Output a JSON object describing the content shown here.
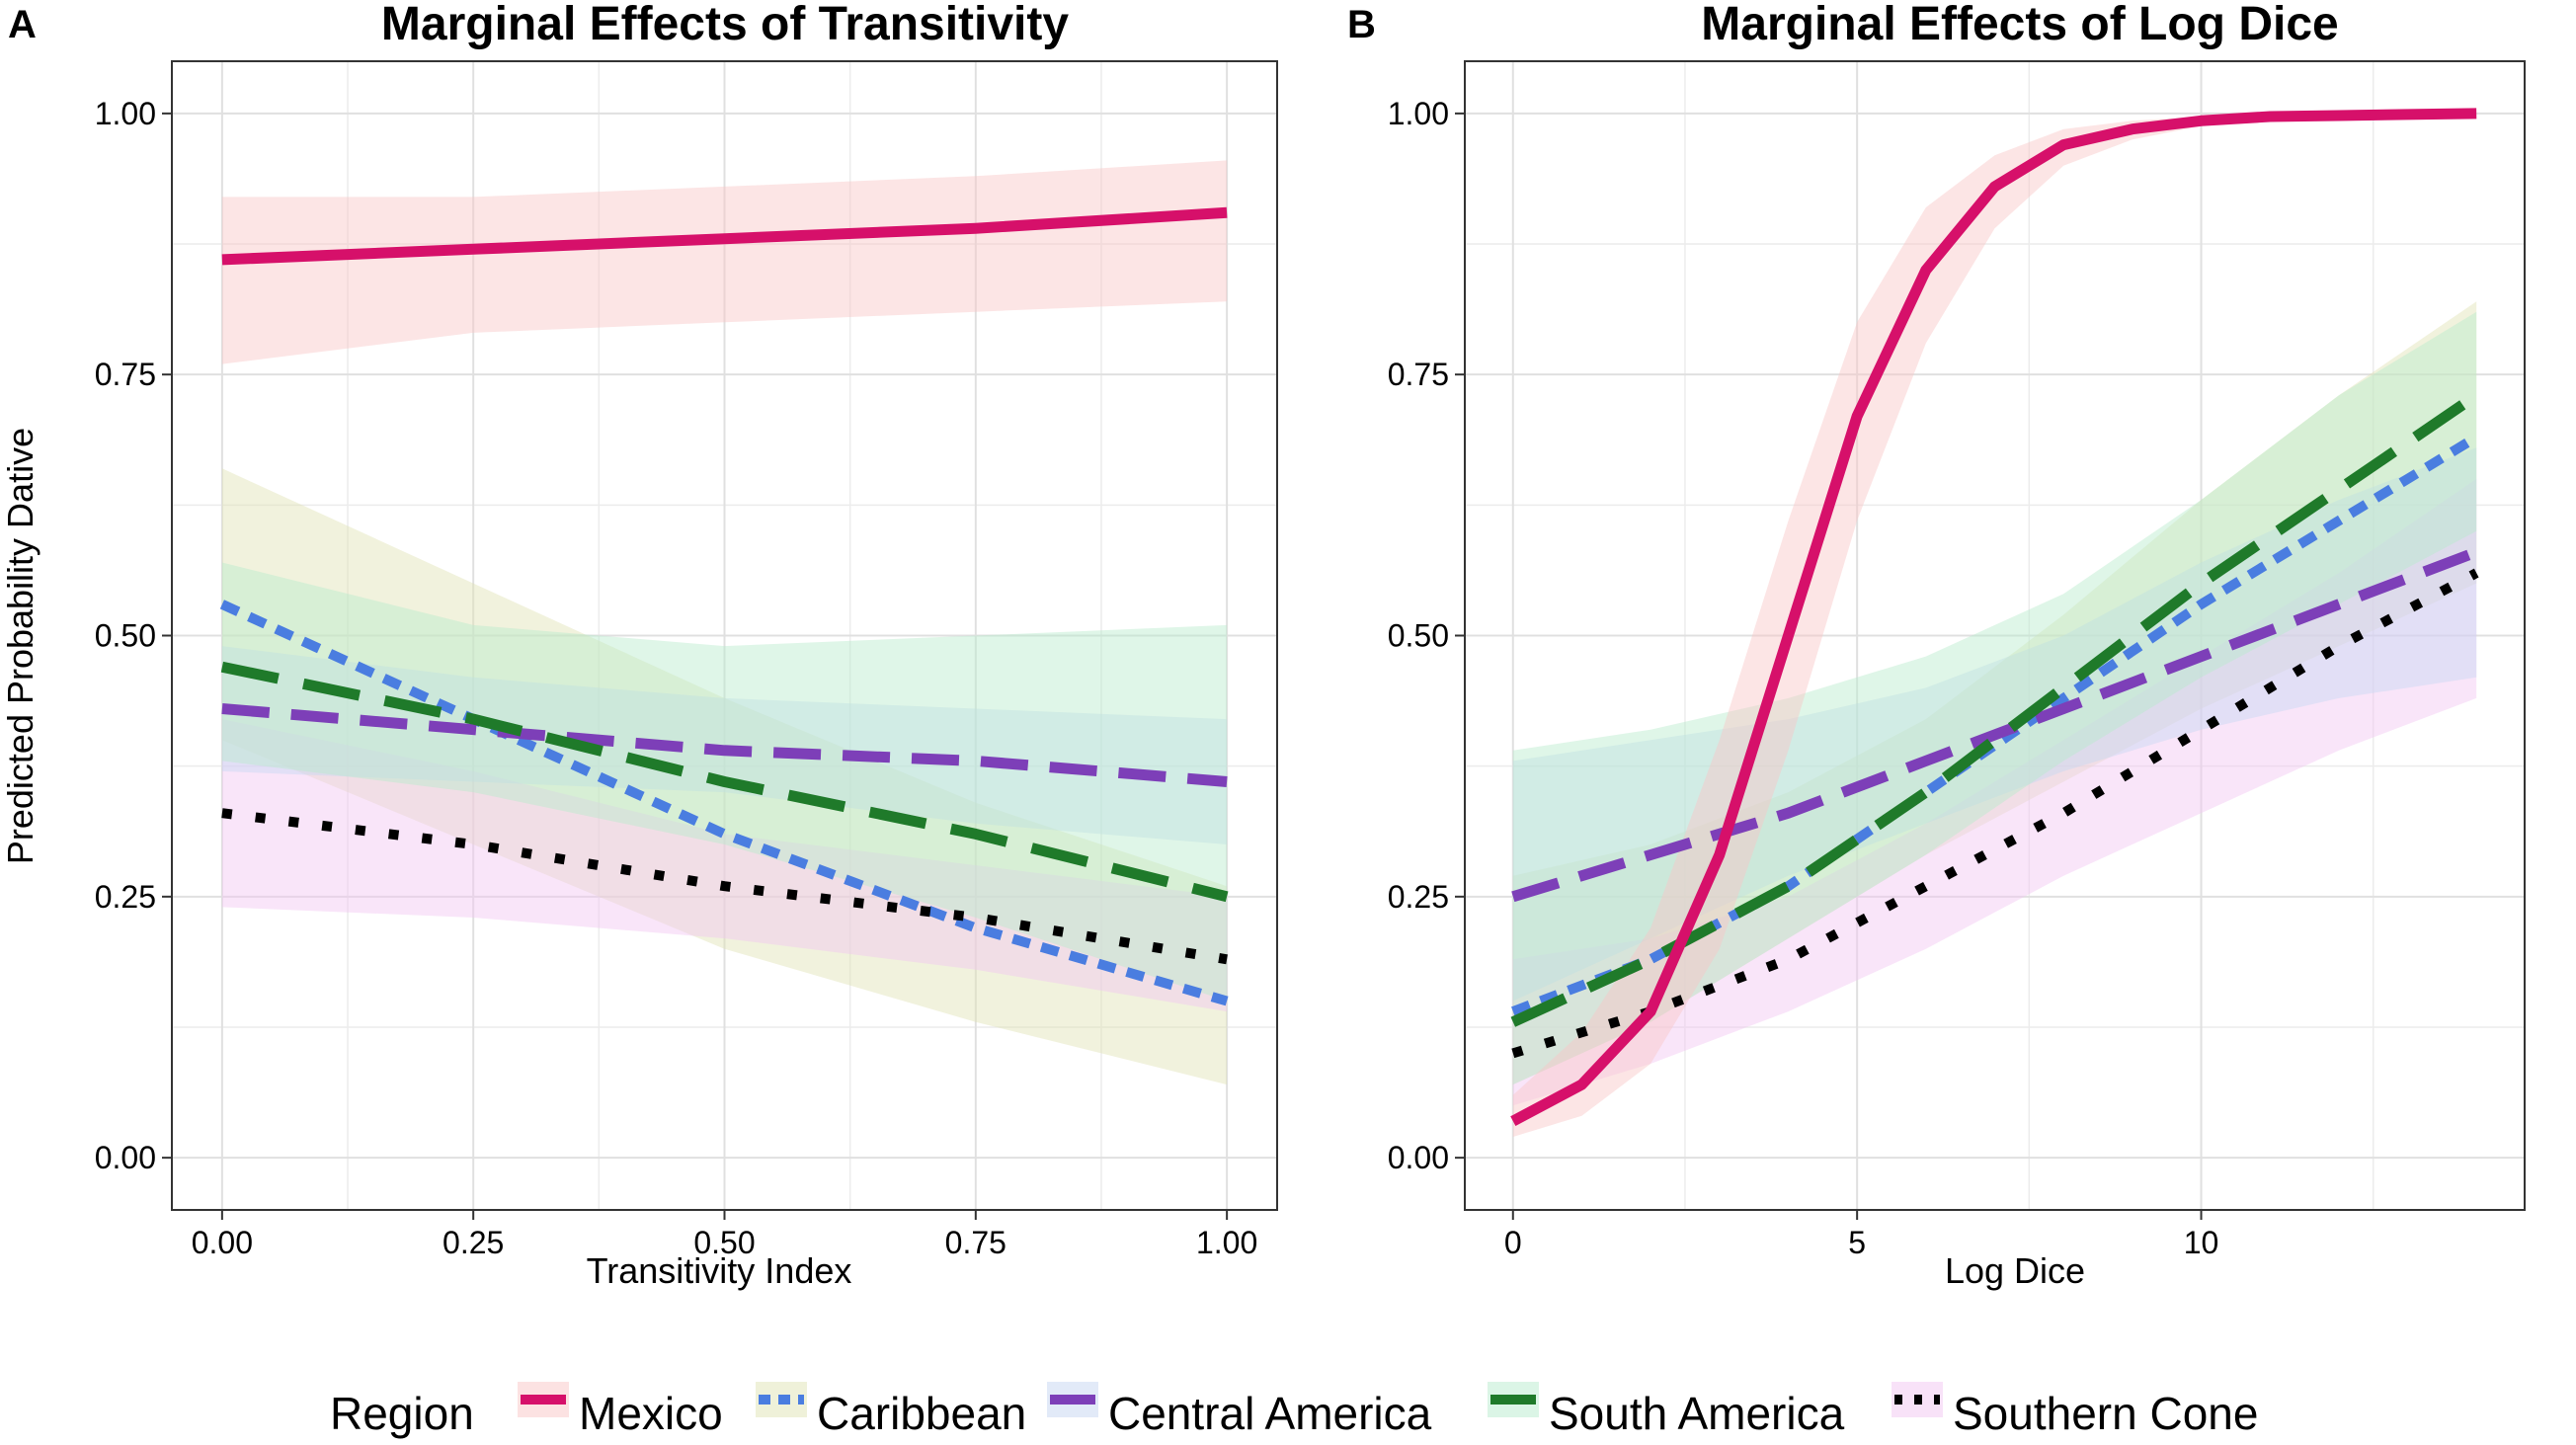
{
  "colors": {
    "Mexico": "#d6106a",
    "Caribbean": "#4a7de0",
    "Central America": "#7d3fb8",
    "South America": "#1f7a2a",
    "Southern Cone": "#000000"
  },
  "band_colors": {
    "Mexico": "#f9c5c5",
    "Caribbean": "#dfe3b4",
    "Central America": "#c5d6f2",
    "South America": "#b8eccd",
    "Southern Cone": "#f2c5f2"
  },
  "legend": {
    "title": "Region",
    "items": [
      "Mexico",
      "Caribbean",
      "Central America",
      "South America",
      "Southern Cone"
    ]
  },
  "chart_data": [
    {
      "panel": "A",
      "type": "line",
      "title": "Marginal Effects of Transitivity",
      "xlabel": "Transitivity Index",
      "ylabel": "Predicted Probability Dative",
      "xlim": [
        -0.05,
        1.05
      ],
      "ylim": [
        -0.05,
        1.05
      ],
      "xticks": [
        0,
        0.25,
        0.5,
        0.75,
        1
      ],
      "xtick_labels": [
        "0.00",
        "0.25",
        "0.50",
        "0.75",
        "1.00"
      ],
      "yticks": [
        0,
        0.25,
        0.5,
        0.75,
        1
      ],
      "ytick_labels": [
        "0.00",
        "0.25",
        "0.50",
        "0.75",
        "1.00"
      ],
      "series": [
        {
          "name": "Caribbean",
          "x": [
            0,
            0.25,
            0.5,
            0.75,
            1
          ],
          "y": [
            0.53,
            0.42,
            0.31,
            0.22,
            0.15
          ],
          "lower": [
            0.4,
            0.3,
            0.2,
            0.13,
            0.07
          ],
          "upper": [
            0.66,
            0.55,
            0.44,
            0.34,
            0.26
          ]
        },
        {
          "name": "Southern Cone",
          "x": [
            0,
            0.25,
            0.5,
            0.75,
            1
          ],
          "y": [
            0.33,
            0.3,
            0.26,
            0.23,
            0.19
          ],
          "lower": [
            0.24,
            0.23,
            0.21,
            0.18,
            0.14
          ],
          "upper": [
            0.42,
            0.37,
            0.31,
            0.28,
            0.25
          ]
        },
        {
          "name": "Central America",
          "x": [
            0,
            0.25,
            0.5,
            0.75,
            1
          ],
          "y": [
            0.43,
            0.41,
            0.39,
            0.38,
            0.36
          ],
          "lower": [
            0.37,
            0.36,
            0.35,
            0.32,
            0.3
          ],
          "upper": [
            0.49,
            0.46,
            0.44,
            0.43,
            0.42
          ]
        },
        {
          "name": "South America",
          "x": [
            0,
            0.25,
            0.5,
            0.75,
            1
          ],
          "y": [
            0.47,
            0.42,
            0.36,
            0.31,
            0.25
          ],
          "lower": [
            0.38,
            0.35,
            0.3,
            0.23,
            0.15
          ],
          "upper": [
            0.57,
            0.51,
            0.49,
            0.5,
            0.51
          ]
        },
        {
          "name": "Mexico",
          "x": [
            0,
            0.25,
            0.5,
            0.75,
            1
          ],
          "y": [
            0.86,
            0.87,
            0.88,
            0.89,
            0.905
          ],
          "lower": [
            0.76,
            0.79,
            0.8,
            0.81,
            0.82
          ],
          "upper": [
            0.92,
            0.92,
            0.93,
            0.94,
            0.955
          ]
        }
      ]
    },
    {
      "panel": "B",
      "type": "line",
      "title": "Marginal Effects of Log Dice",
      "xlabel": "Log Dice",
      "ylabel": "",
      "xlim": [
        -0.7,
        14.7
      ],
      "ylim": [
        -0.05,
        1.05
      ],
      "xticks": [
        0,
        5,
        10
      ],
      "xtick_labels": [
        "0",
        "5",
        "10"
      ],
      "yticks": [
        0,
        0.25,
        0.5,
        0.75,
        1
      ],
      "ytick_labels": [
        "0.00",
        "0.25",
        "0.50",
        "0.75",
        "1.00"
      ],
      "series": [
        {
          "name": "Caribbean",
          "x": [
            0,
            2,
            4,
            6,
            8,
            10,
            12,
            14
          ],
          "y": [
            0.14,
            0.19,
            0.26,
            0.35,
            0.44,
            0.53,
            0.61,
            0.69
          ],
          "lower": [
            0.07,
            0.13,
            0.21,
            0.29,
            0.36,
            0.43,
            0.49,
            0.55
          ],
          "upper": [
            0.27,
            0.3,
            0.35,
            0.42,
            0.52,
            0.63,
            0.73,
            0.82
          ]
        },
        {
          "name": "Southern Cone",
          "x": [
            0,
            2,
            4,
            6,
            8,
            10,
            12,
            14
          ],
          "y": [
            0.1,
            0.14,
            0.19,
            0.26,
            0.33,
            0.41,
            0.49,
            0.56
          ],
          "lower": [
            0.05,
            0.09,
            0.14,
            0.2,
            0.27,
            0.33,
            0.39,
            0.44
          ],
          "upper": [
            0.19,
            0.21,
            0.25,
            0.32,
            0.4,
            0.48,
            0.56,
            0.65
          ]
        },
        {
          "name": "Central America",
          "x": [
            0,
            2,
            4,
            6,
            8,
            10,
            12,
            14
          ],
          "y": [
            0.25,
            0.29,
            0.33,
            0.38,
            0.43,
            0.48,
            0.53,
            0.58
          ],
          "lower": [
            0.15,
            0.21,
            0.27,
            0.32,
            0.37,
            0.41,
            0.44,
            0.46
          ],
          "upper": [
            0.38,
            0.4,
            0.42,
            0.45,
            0.5,
            0.57,
            0.63,
            0.68
          ]
        },
        {
          "name": "South America",
          "x": [
            0,
            2,
            4,
            6,
            8,
            10,
            12,
            14
          ],
          "y": [
            0.13,
            0.19,
            0.26,
            0.35,
            0.45,
            0.55,
            0.64,
            0.73
          ],
          "lower": [
            0.07,
            0.13,
            0.21,
            0.29,
            0.38,
            0.46,
            0.53,
            0.6
          ],
          "upper": [
            0.39,
            0.41,
            0.44,
            0.48,
            0.54,
            0.63,
            0.73,
            0.81
          ]
        },
        {
          "name": "Mexico",
          "x": [
            0,
            1,
            2,
            3,
            4,
            5,
            6,
            7,
            8,
            9,
            10,
            11,
            12,
            13,
            14
          ],
          "y": [
            0.035,
            0.07,
            0.14,
            0.29,
            0.5,
            0.71,
            0.85,
            0.93,
            0.97,
            0.985,
            0.993,
            0.997,
            0.998,
            0.999,
            1.0
          ],
          "lower": [
            0.02,
            0.04,
            0.09,
            0.2,
            0.39,
            0.61,
            0.78,
            0.89,
            0.95,
            0.975,
            0.988,
            0.994,
            0.997,
            0.998,
            0.999
          ],
          "upper": [
            0.06,
            0.12,
            0.22,
            0.4,
            0.61,
            0.8,
            0.91,
            0.96,
            0.985,
            0.993,
            0.997,
            0.999,
            1.0,
            1.0,
            1.0
          ]
        }
      ]
    }
  ]
}
